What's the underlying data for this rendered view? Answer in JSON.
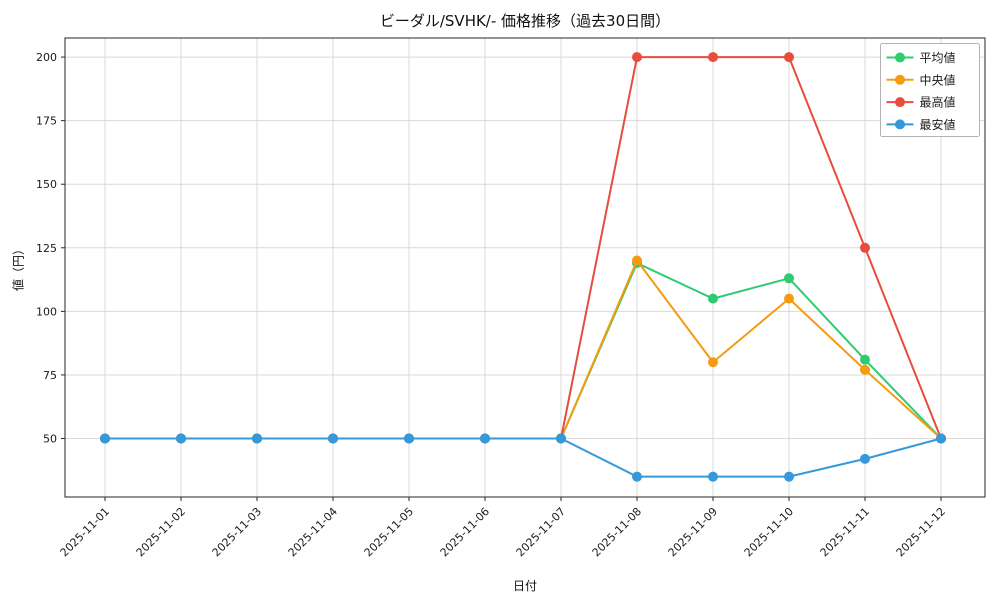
{
  "chart_data": {
    "type": "line",
    "title": "ビーダル/SVHK/- 価格推移（過去30日間）",
    "xlabel": "日付",
    "ylabel": "値（円）",
    "x": [
      "2025-11-01",
      "2025-11-02",
      "2025-11-03",
      "2025-11-04",
      "2025-11-05",
      "2025-11-06",
      "2025-11-07",
      "2025-11-08",
      "2025-11-09",
      "2025-11-10",
      "2025-11-11",
      "2025-11-12"
    ],
    "series": [
      {
        "key": "average",
        "name": "平均値",
        "color": "#2ecc71",
        "values": [
          50,
          50,
          50,
          50,
          50,
          50,
          50,
          119,
          105,
          113,
          81,
          50
        ]
      },
      {
        "key": "median",
        "name": "中央値",
        "color": "#f39c12",
        "values": [
          50,
          50,
          50,
          50,
          50,
          50,
          50,
          120,
          80,
          105,
          77,
          50
        ]
      },
      {
        "key": "highest",
        "name": "最高値",
        "color": "#e74c3c",
        "values": [
          50,
          50,
          50,
          50,
          50,
          50,
          50,
          200,
          200,
          200,
          125,
          50
        ]
      },
      {
        "key": "lowest",
        "name": "最安値",
        "color": "#3498db",
        "values": [
          50,
          50,
          50,
          50,
          50,
          50,
          50,
          35,
          35,
          35,
          42,
          50
        ]
      }
    ],
    "yticks": [
      50,
      75,
      100,
      125,
      150,
      175,
      200
    ],
    "ylim": [
      27,
      207.5
    ],
    "grid": true,
    "legend_position": "upper right",
    "colors": {
      "grid": "#d9d9d9",
      "spine": "#262626",
      "text": "#1a1a1a",
      "legend_border": "#b3b3b3"
    }
  }
}
